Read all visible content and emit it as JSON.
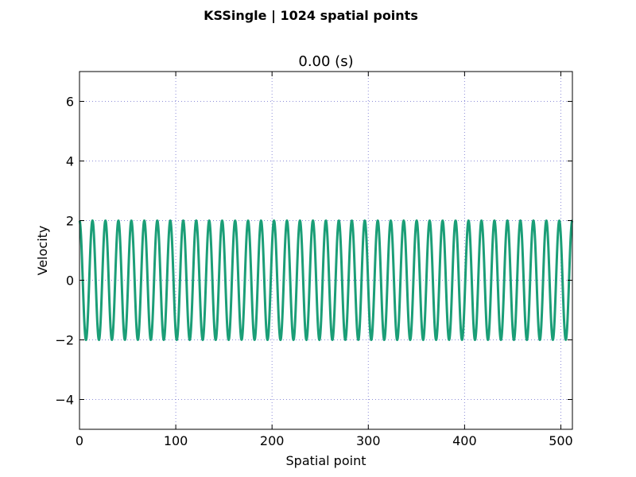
{
  "chart_data": {
    "type": "line",
    "suptitle": "KSSingle | 1024 spatial points",
    "title": "0.00 (s)",
    "xlabel": "Spatial point",
    "ylabel": "Velocity",
    "xlim": [
      0,
      512
    ],
    "ylim": [
      -5,
      7
    ],
    "xticks": [
      0,
      100,
      200,
      300,
      400,
      500
    ],
    "xtick_labels": [
      "0",
      "100",
      "200",
      "300",
      "400",
      "500"
    ],
    "yticks": [
      -4,
      -2,
      0,
      2,
      4,
      6
    ],
    "ytick_labels": [
      "−4",
      "−2",
      "0",
      "2",
      "4",
      "6"
    ],
    "grid": true,
    "line_color": "#1b9e77",
    "series": [
      {
        "function": "2*cos(2*pi*x/13.47)",
        "amplitude": 2,
        "period_points": 13.47,
        "x_start": 0,
        "x_end": 512,
        "samples": 2048
      }
    ]
  }
}
